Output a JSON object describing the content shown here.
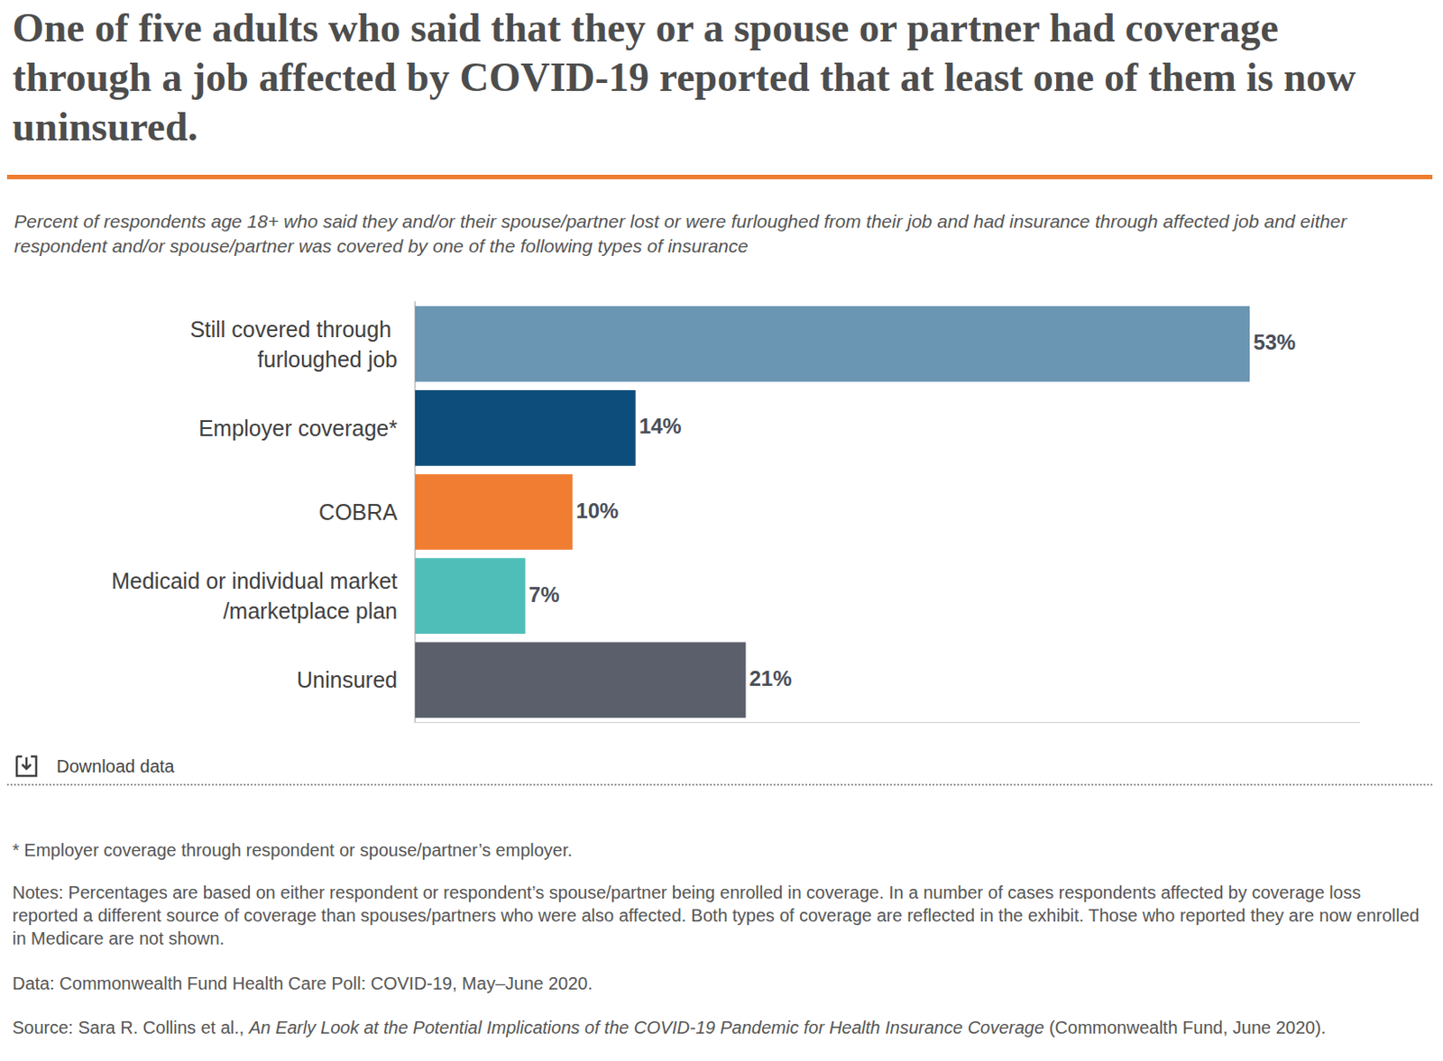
{
  "chart_data": {
    "type": "bar",
    "orientation": "horizontal",
    "title": "One of five adults who said that they or a spouse or partner had coverage through a job affected by COVID-19 reported that at least one of them is now uninsured.",
    "subtitle": "Percent of respondents age 18+ who said they and/or their spouse/partner lost or were furloughed from their job and had insurance through affected job and either respondent and/or spouse/partner was covered by one of the following types of insurance",
    "categories": [
      "Still covered through furloughed job",
      "Employer coverage*",
      "COBRA",
      "Medicaid or individual market/marketplace plan",
      "Uninsured"
    ],
    "values": [
      53,
      14,
      10,
      7,
      21
    ],
    "value_labels": [
      "53%",
      "14%",
      "10%",
      "7%",
      "21%"
    ],
    "colors": [
      "#6a96b3",
      "#0d4d7c",
      "#f07d31",
      "#50beb8",
      "#5a5f6b"
    ],
    "xlim": [
      0,
      60
    ],
    "tick_labels": "y",
    "grid": false,
    "data_labels": true,
    "download_text": "Download data",
    "footnote": "* Employer coverage through respondent or spouse/partner’s employer.",
    "notes": "Notes: Percentages are based on either respondent or respondent’s spouse/partner being enrolled in coverage. In a number of cases respondents affected by coverage loss reported a different source of coverage than spouses/partners who were also affected. Both types of coverage are reflected in the exhibit. Those who reported they are now enrolled in Medicare are not shown.",
    "data_source": "Data: Commonwealth Fund Health Care Poll: COVID-19, May–June 2020.",
    "source": {
      "prefix": "Source: Sara R. Collins et al., ",
      "title": "An Early Look at the Potential Implications of the COVID-19 Pandemic for Health Insurance Coverage",
      "suffix": " (Commonwealth Fund, June 2020)."
    }
  }
}
